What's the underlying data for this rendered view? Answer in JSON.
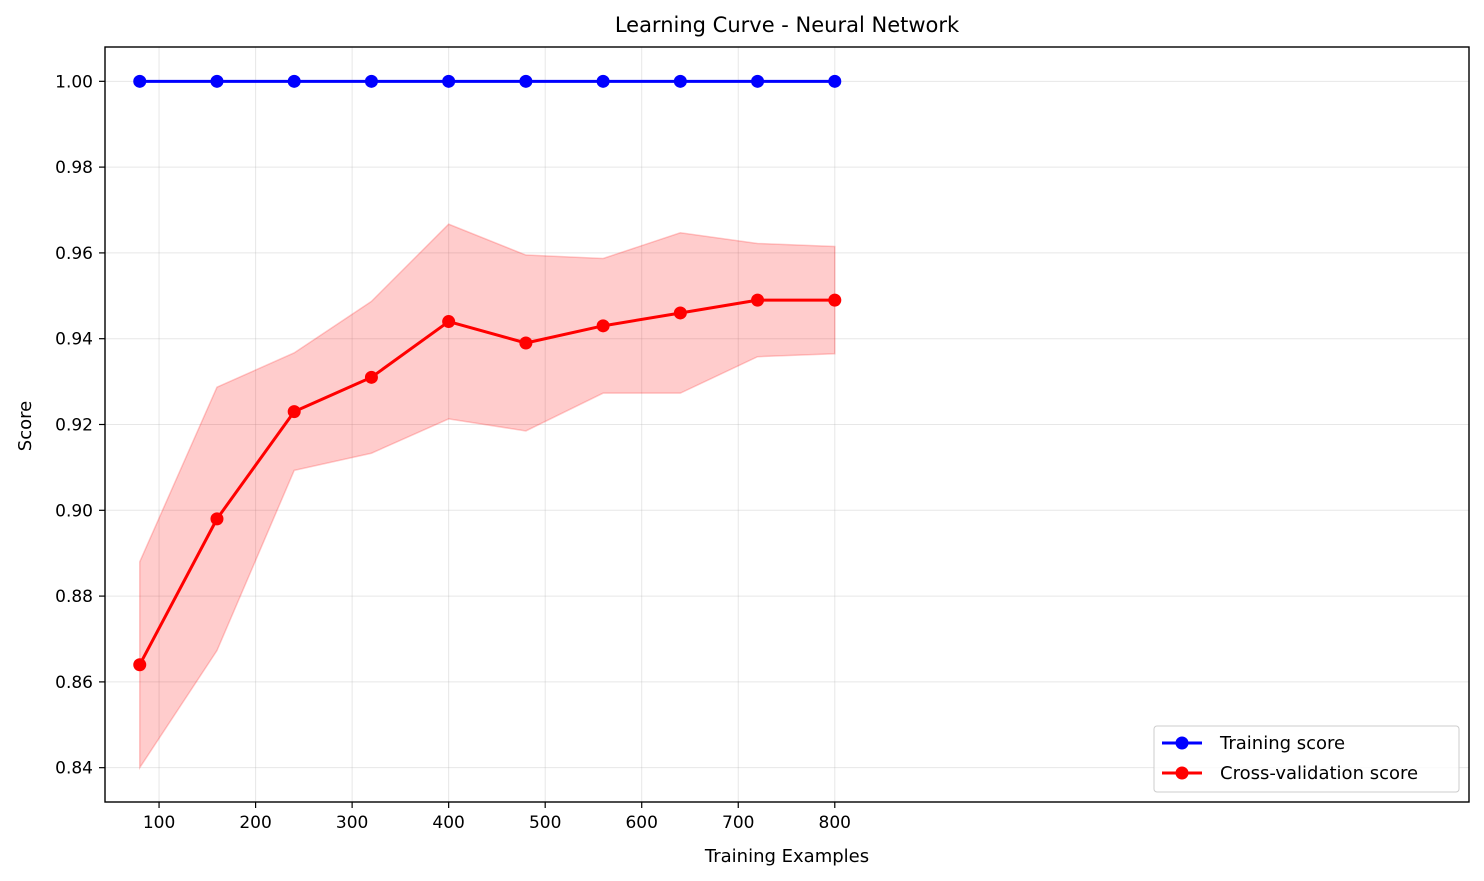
{
  "chart_data": {
    "type": "line",
    "title": "Learning Curve - Neural Network",
    "xlabel": "Training Examples",
    "ylabel": "Score",
    "xlim": [
      44,
      1457
    ],
    "ylim": [
      0.832,
      1.008
    ],
    "xticks": [
      100,
      200,
      300,
      400,
      500,
      600,
      700,
      800
    ],
    "xtick_labels": [
      "100",
      "200",
      "300",
      "400",
      "500",
      "600",
      "700",
      "800"
    ],
    "yticks": [
      0.84,
      0.86,
      0.88,
      0.9,
      0.92,
      0.94,
      0.96,
      0.98,
      1.0
    ],
    "ytick_labels": [
      "0.84",
      "0.86",
      "0.88",
      "0.90",
      "0.92",
      "0.94",
      "0.96",
      "0.98",
      "1.00"
    ],
    "grid": true,
    "legend_position": "lower-right",
    "x": [
      80,
      160,
      240,
      320,
      400,
      480,
      560,
      640,
      720,
      800
    ],
    "series": [
      {
        "name": "Training score",
        "color": "#0000ff",
        "marker": "circle",
        "values": [
          1.0,
          1.0,
          1.0,
          1.0,
          1.0,
          1.0,
          1.0,
          1.0,
          1.0,
          1.0
        ]
      },
      {
        "name": "Cross-validation score",
        "color": "#ff0000",
        "marker": "circle",
        "values": [
          0.864,
          0.898,
          0.923,
          0.931,
          0.944,
          0.939,
          0.943,
          0.946,
          0.949,
          0.949
        ],
        "band": {
          "color": "#ff0000",
          "opacity": 0.2,
          "upper": [
            0.888,
            0.9287,
            0.9367,
            0.9487,
            0.9667,
            0.9595,
            0.9587,
            0.9647,
            0.9622,
            0.9615
          ],
          "lower": [
            0.84,
            0.8673,
            0.9093,
            0.9133,
            0.9213,
            0.9185,
            0.9273,
            0.9273,
            0.9358,
            0.9365
          ]
        }
      }
    ]
  }
}
